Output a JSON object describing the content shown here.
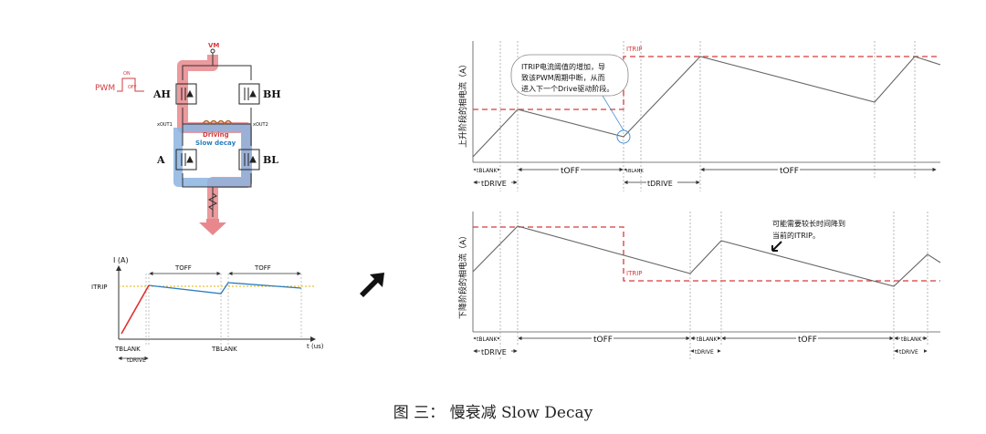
{
  "caption": "图 三： 慢衰减 Slow Decay",
  "bridge": {
    "vm": "VM",
    "pwm": "PWM",
    "ton_mark": "ON",
    "toff_mark": "OFF",
    "ah": "AH",
    "bh": "BH",
    "al": "A",
    "bl": "BL",
    "out1": "xOUT1",
    "out2": "xOUT2",
    "driving": "Driving",
    "slow_decay": "Slow decay",
    "colors": {
      "driving": "#e8888c",
      "decay": "#8cb4e0",
      "driving_text": "#d23c3c",
      "decay_text": "#2a7cc0"
    }
  },
  "small_chart": {
    "ylabel": "I (A)",
    "itrip": "ITRIP",
    "toff1": "TOFF",
    "toff2": "TOFF",
    "xlabel": "t (us)",
    "tblank1": "TBLANK",
    "tblank2": "TBLANK",
    "tdrive": "tDRIVE"
  },
  "top_chart": {
    "ylabel": "上升阶段的相电流（A）",
    "itrip": "ITRIP",
    "annotation": [
      "ITRIP电流阈值的增加，导",
      "致该PWM周期中断，从而",
      "进入下一个Drive驱动阶段。"
    ],
    "tblank1": "tBLANK",
    "toff1": "tOFF",
    "tblank2": "tBLANK",
    "toff2": "tOFF",
    "tdrive1": "tDRIVE",
    "tdrive2": "tDRIVE"
  },
  "bottom_chart": {
    "ylabel": "下降阶段的相电流（A）",
    "itrip": "ITRIP",
    "annotation": [
      "可能需要较长时间降到",
      "当前的ITRIP。"
    ],
    "tblank1": "tBLANK",
    "toff1": "tOFF",
    "tblank2": "tBLANK",
    "toff2": "tOFF",
    "tblank3": "tBLANK",
    "tdrive1": "tDRIVE",
    "tdrive2": "tDRIVE",
    "tdrive3": "tDRIVE"
  }
}
